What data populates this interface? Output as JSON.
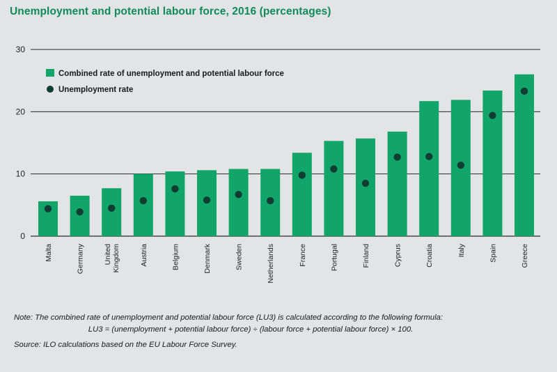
{
  "title": "Unemployment and potential labour force, 2016 (percentages)",
  "note_line1": "Note: The combined rate of unemployment and potential labour force (LU3) is calculated according to the following formula:",
  "note_line2": "LU3 = (unemployment + potential labour force) ÷ (labour force + potential labour force) × 100.",
  "source": "Source: ILO calculations based on the EU Labour Force Survey.",
  "colors": {
    "bar": "#12a56a",
    "dot": "#0f3d33",
    "grid": "#2a2a2a",
    "title": "#0f8a5b"
  },
  "chart_data": {
    "type": "bar",
    "categories": [
      "Malta",
      "Germany",
      "United Kingdom",
      "Austria",
      "Belgium",
      "Denmark",
      "Sweden",
      "Netherlands",
      "France",
      "Portugal",
      "Finland",
      "Cyprus",
      "Croatia",
      "Italy",
      "Spain",
      "Greece"
    ],
    "series": [
      {
        "name": "Combined rate of unemployment and potential labour force",
        "type": "bar",
        "values": [
          5.6,
          6.5,
          7.7,
          10.0,
          10.4,
          10.6,
          10.8,
          10.8,
          13.4,
          15.3,
          15.7,
          16.8,
          21.7,
          21.9,
          23.4,
          26.0
        ]
      },
      {
        "name": "Unemployment rate",
        "type": "scatter",
        "values": [
          4.4,
          3.9,
          4.5,
          5.7,
          7.6,
          5.8,
          6.7,
          5.7,
          9.8,
          10.8,
          8.5,
          12.7,
          12.8,
          11.4,
          19.4,
          23.3
        ]
      }
    ],
    "yticks": [
      0,
      10,
      20,
      30
    ],
    "ylim": [
      0,
      30
    ],
    "grid": true,
    "legend_position": "top-left"
  }
}
